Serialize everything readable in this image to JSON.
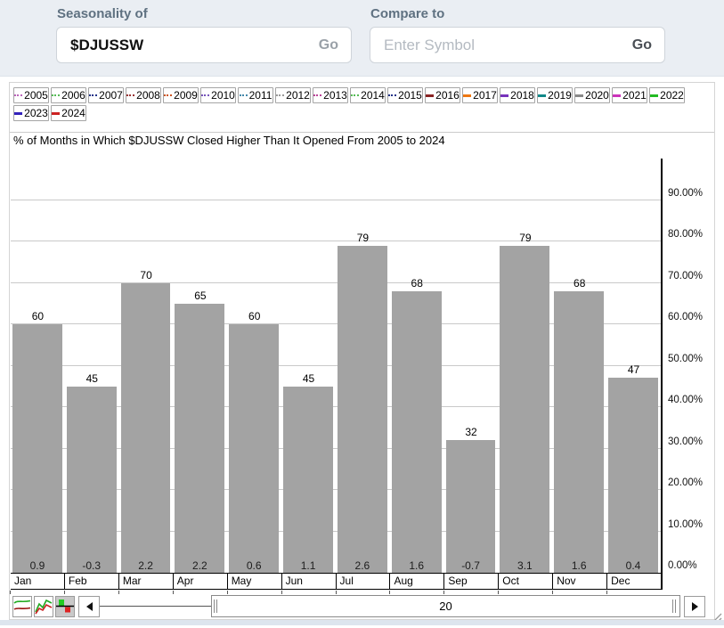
{
  "header": {
    "seasonality_label": "Seasonality of",
    "symbol_value": "$DJUSSW",
    "go_label": "Go",
    "compare_label": "Compare to",
    "compare_placeholder": "Enter Symbol",
    "compare_go_label": "Go"
  },
  "legend": {
    "years": [
      {
        "label": "2005",
        "color": "#bb66bb",
        "style": "dotted"
      },
      {
        "label": "2006",
        "color": "#55bb55",
        "style": "dotted"
      },
      {
        "label": "2007",
        "color": "#223388",
        "style": "dotted"
      },
      {
        "label": "2008",
        "color": "#993333",
        "style": "dotted"
      },
      {
        "label": "2009",
        "color": "#cc5522",
        "style": "dotted"
      },
      {
        "label": "2010",
        "color": "#7755bb",
        "style": "dotted"
      },
      {
        "label": "2011",
        "color": "#4488aa",
        "style": "dotted"
      },
      {
        "label": "2012",
        "color": "#999999",
        "style": "dotted"
      },
      {
        "label": "2013",
        "color": "#bb4499",
        "style": "dotted"
      },
      {
        "label": "2014",
        "color": "#55bb55",
        "style": "dotted"
      },
      {
        "label": "2015",
        "color": "#223388",
        "style": "dotted"
      },
      {
        "label": "2016",
        "color": "#882222",
        "style": "solid"
      },
      {
        "label": "2017",
        "color": "#ee7711",
        "style": "solid"
      },
      {
        "label": "2018",
        "color": "#7733bb",
        "style": "solid"
      },
      {
        "label": "2019",
        "color": "#118888",
        "style": "solid"
      },
      {
        "label": "2020",
        "color": "#888888",
        "style": "solid"
      },
      {
        "label": "2021",
        "color": "#cc33bb",
        "style": "solid"
      },
      {
        "label": "2022",
        "color": "#22bb22",
        "style": "solid"
      },
      {
        "label": "2023",
        "color": "#3322bb",
        "style": "solid"
      },
      {
        "label": "2024",
        "color": "#cc2222",
        "style": "solid"
      }
    ]
  },
  "chart_data": {
    "type": "bar",
    "title": "% of Months in Which $DJUSSW Closed Higher Than It Opened From 2005 to 2024",
    "categories": [
      "Jan",
      "Feb",
      "Mar",
      "Apr",
      "May",
      "Jun",
      "Jul",
      "Aug",
      "Sep",
      "Oct",
      "Nov",
      "Dec"
    ],
    "values": [
      60,
      45,
      70,
      65,
      60,
      45,
      79,
      68,
      32,
      79,
      68,
      47
    ],
    "avg_change": [
      0.9,
      -0.3,
      2.2,
      2.2,
      0.6,
      1.1,
      2.6,
      1.6,
      -0.7,
      3.1,
      1.6,
      0.4
    ],
    "ytick_labels": [
      "0.00%",
      "10.00%",
      "20.00%",
      "30.00%",
      "40.00%",
      "50.00%",
      "60.00%",
      "70.00%",
      "80.00%",
      "90.00%"
    ],
    "ylim": [
      0,
      100
    ],
    "bar_color": "#a3a3a3",
    "grid": true,
    "legend_position": "top",
    "xlabel": "",
    "ylabel": ""
  },
  "toolbar": {
    "scroll_value": "20",
    "icons": [
      "line-chart-icon",
      "performance-chart-icon",
      "histogram-chart-icon",
      "left-arrow-icon",
      "right-arrow-icon",
      "resize-grip-icon"
    ]
  }
}
